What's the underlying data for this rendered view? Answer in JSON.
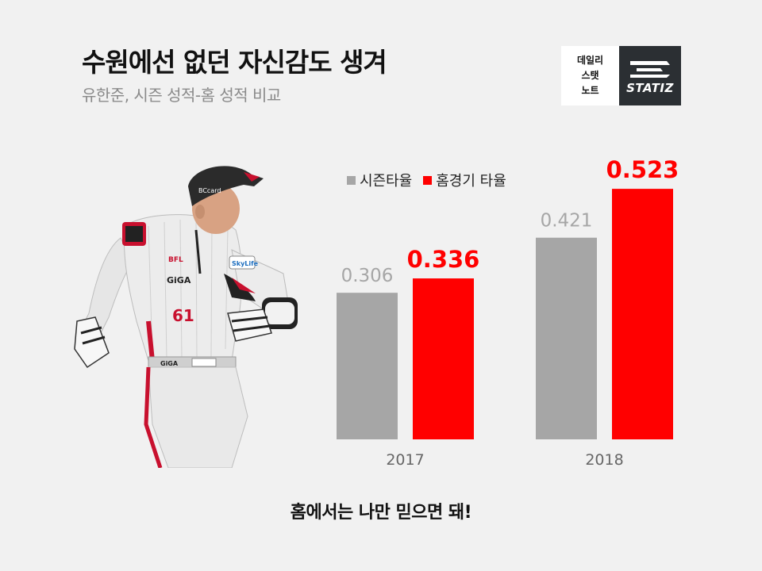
{
  "header": {
    "title": "수원에선 없던 자신감도 생겨",
    "subtitle": "유한준, 시즌 성적-홈 성적 비교"
  },
  "logo": {
    "left_lines": [
      "데일리",
      "스탯",
      "노트"
    ],
    "right_text": "STATIZ"
  },
  "player_image": {
    "jersey_number": "61",
    "sponsor_texts": [
      "BCcard",
      "BFL",
      "GiGA",
      "SkyLife",
      "GiGA"
    ]
  },
  "chart_data": {
    "type": "bar",
    "categories": [
      "2017",
      "2018"
    ],
    "series": [
      {
        "name": "시즌타율",
        "values": [
          0.306,
          0.421
        ],
        "labels": [
          "0.306",
          "0.421"
        ],
        "color": "#a6a6a6",
        "label_color": "#a6a6a6"
      },
      {
        "name": "홈경기 타율",
        "values": [
          0.336,
          0.523
        ],
        "labels": [
          "0.336",
          "0.523"
        ],
        "color": "#ff0000",
        "label_color": "#ff0000"
      }
    ],
    "title": "",
    "xlabel": "",
    "ylabel": "",
    "ylim": [
      0,
      0.6
    ],
    "grid": false,
    "legend": "top"
  },
  "tagline": "홈에서는 나만 믿으면 돼!"
}
